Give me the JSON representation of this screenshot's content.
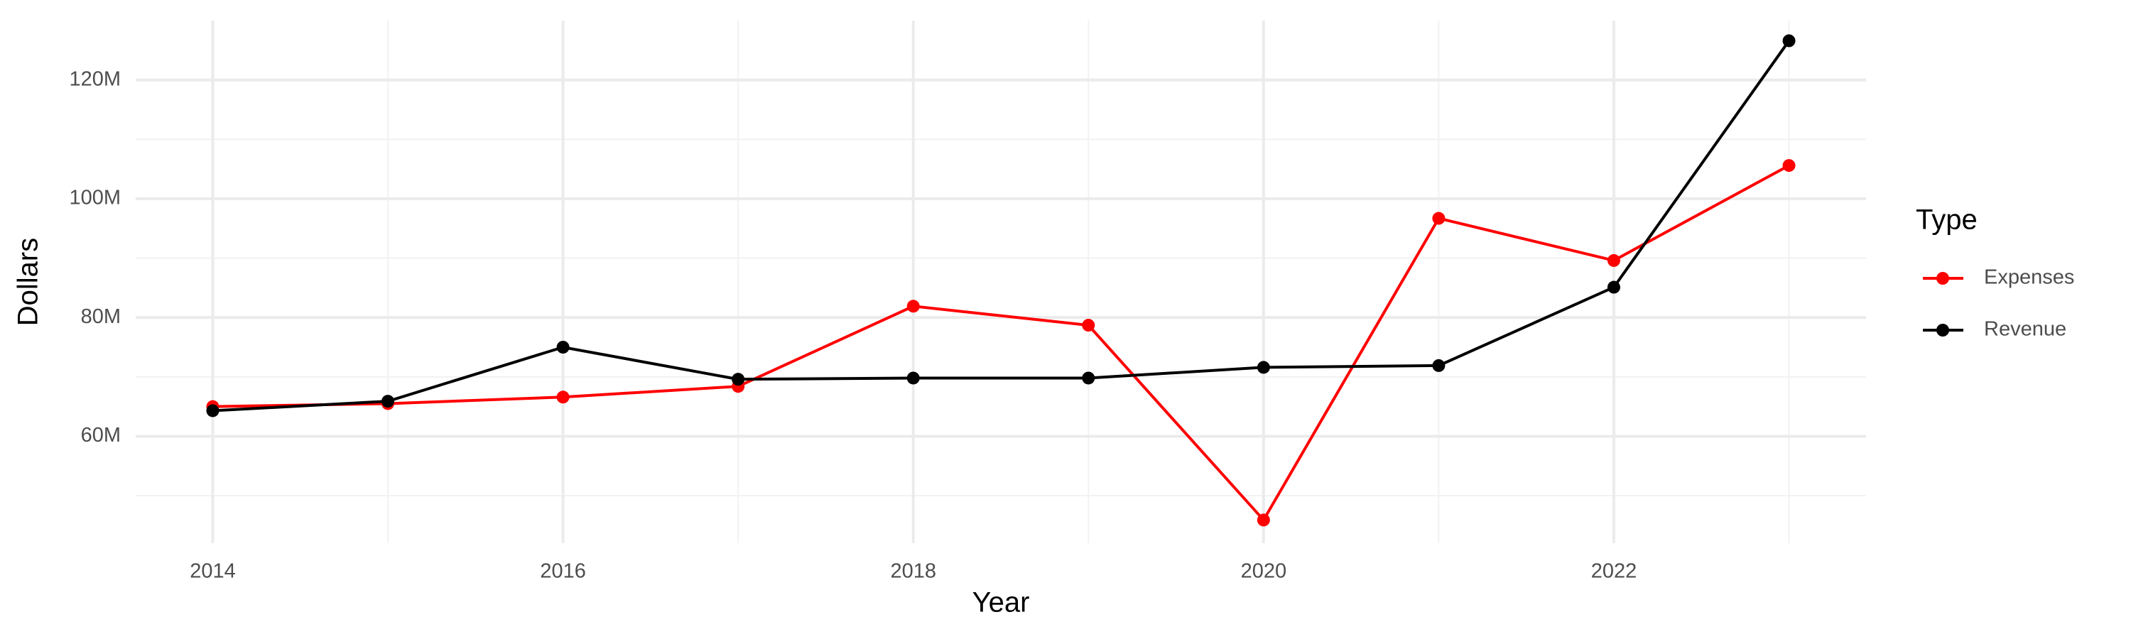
{
  "chart_data": {
    "type": "line",
    "x_label": "Year",
    "y_label": "Dollars",
    "legend_title": "Type",
    "x": [
      2014,
      2015,
      2016,
      2017,
      2018,
      2019,
      2020,
      2021,
      2022,
      2023
    ],
    "series": [
      {
        "name": "Expenses",
        "color": "#ff0000",
        "values": [
          65000000,
          65500000,
          66600000,
          68400000,
          81900000,
          78700000,
          45900000,
          96700000,
          89600000,
          105600000
        ]
      },
      {
        "name": "Revenue",
        "color": "#000000",
        "values": [
          64300000,
          65900000,
          75000000,
          69600000,
          69800000,
          69800000,
          71600000,
          71900000,
          85100000,
          126600000
        ]
      }
    ],
    "xlim": [
      2013.56,
      2023.44
    ],
    "xticks": [
      2014,
      2016,
      2018,
      2020,
      2022
    ],
    "xminor": [
      2015,
      2017,
      2019,
      2021,
      2023
    ],
    "ylim": [
      42000000,
      130000000
    ],
    "yticks": [
      {
        "value": 60000000,
        "label": "60M"
      },
      {
        "value": 80000000,
        "label": "80M"
      },
      {
        "value": 100000000,
        "label": "100M"
      },
      {
        "value": 120000000,
        "label": "120M"
      }
    ],
    "yminor": [
      50000000,
      70000000,
      90000000,
      110000000
    ],
    "grid": true,
    "legend": "right"
  }
}
